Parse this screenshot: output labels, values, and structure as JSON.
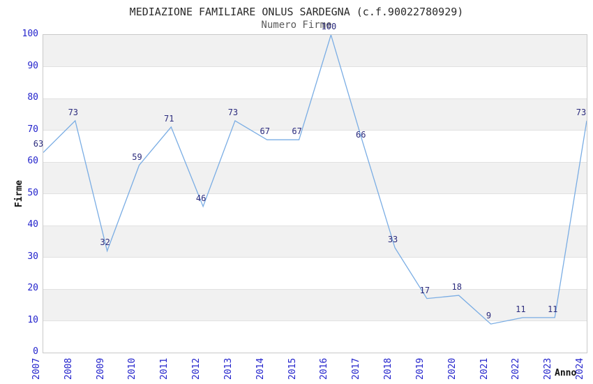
{
  "chart_data": {
    "type": "line",
    "title": "MEDIAZIONE FAMILIARE ONLUS SARDEGNA (c.f.90022780929)",
    "subtitle": "Numero Firme",
    "xlabel": "Anno",
    "ylabel": "Firme",
    "categories": [
      "2007",
      "2008",
      "2009",
      "2010",
      "2011",
      "2012",
      "2013",
      "2014",
      "2015",
      "2016",
      "2017",
      "2018",
      "2019",
      "2020",
      "2021",
      "2022",
      "2023",
      "2024"
    ],
    "values": [
      63,
      73,
      32,
      59,
      71,
      46,
      73,
      67,
      67,
      100,
      66,
      33,
      17,
      18,
      9,
      11,
      11,
      73
    ],
    "value_labels_shown": true,
    "ylim": [
      0,
      100
    ],
    "yticks": [
      0,
      10,
      20,
      30,
      40,
      50,
      60,
      70,
      80,
      90,
      100
    ],
    "grid": "horizontal-bands",
    "legend": "none",
    "colors": {
      "line": "#7aade4",
      "tick_labels": "#2323cc",
      "value_labels": "#2b2b7d",
      "band_gray": "#f1f1f1",
      "band_white": "#ffffff",
      "gridline": "#e1e1e1",
      "plot_border": "#c9c9c9",
      "title": "#2a2a2a",
      "subtitle": "#5a5a5a",
      "axis_titles": "#111111"
    }
  }
}
